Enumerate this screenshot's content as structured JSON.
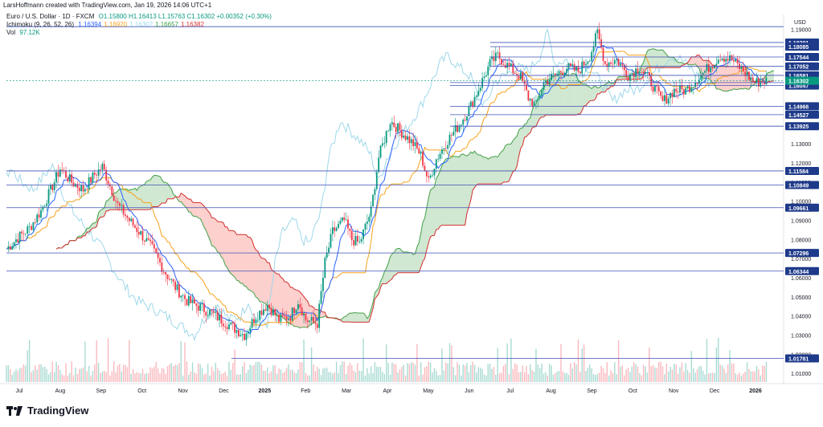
{
  "header": {
    "created_by": "LarsHoffmann created with TradingView.com, Jan 19, 2026 14:06 UTC+1"
  },
  "legend": {
    "symbol": "Euro / U.S. Dollar · 1D · FXCM",
    "ohlc": "O1.15800 H1.16413 L1.15763 C1.16302 +0.00352 (+0.30%)",
    "ichimoku_label": "Ichimoku (9, 26, 52, 26)",
    "ichimoku_values": [
      {
        "text": "1.16394",
        "color": "#2962ff"
      },
      {
        "text": "1.16920",
        "color": "#f7a21b"
      },
      {
        "text": "1.16302",
        "color": "#9fd8ea"
      },
      {
        "text": "1.16657",
        "color": "#43a047"
      },
      {
        "text": "1.16382",
        "color": "#d32f2f"
      }
    ],
    "vol_label": "Vol",
    "vol_value": "97.12K"
  },
  "footer": {
    "brand": "TradingView"
  },
  "chart_data": {
    "type": "candlestick",
    "currency": "USD",
    "y_range": [
      1.005,
      1.196
    ],
    "y_ticks": [
      "1.19000",
      "1.18000",
      "1.17000",
      "1.16000",
      "1.15000",
      "1.14000",
      "1.13000",
      "1.12000",
      "1.11000",
      "1.10000",
      "1.09000",
      "1.08000",
      "1.07000",
      "1.06000",
      "1.05000",
      "1.04000",
      "1.03000",
      "1.02000",
      "1.01000"
    ],
    "x_labels": [
      "Jul",
      "Aug",
      "Sep",
      "Oct",
      "Nov",
      "Dec",
      "2025",
      "Feb",
      "Mar",
      "Apr",
      "May",
      "Jun",
      "Jul",
      "Aug",
      "Sep",
      "Oct",
      "Nov",
      "Dec",
      "2026"
    ],
    "x_bold": [
      "2025",
      "2026"
    ],
    "levels": [
      {
        "value": 1.18301,
        "label": "1.18301"
      },
      {
        "value": 1.18085,
        "label": "1.18085"
      },
      {
        "value": 1.17544,
        "label": "1.17544"
      },
      {
        "value": 1.17052,
        "label": "1.17052"
      },
      {
        "value": 1.16581,
        "label": "1.16581"
      },
      {
        "value": 1.16206,
        "label": "1.16206"
      },
      {
        "value": 1.16047,
        "label": "1.16047"
      },
      {
        "value": 1.14966,
        "label": "1.14966"
      },
      {
        "value": 1.14527,
        "label": "1.14527"
      },
      {
        "value": 1.13925,
        "label": "1.13925"
      },
      {
        "value": 1.11584,
        "label": "1.11584"
      },
      {
        "value": 1.10849,
        "label": "1.10849"
      },
      {
        "value": 1.09661,
        "label": "1.09661"
      },
      {
        "value": 1.07296,
        "label": "1.07296"
      },
      {
        "value": 1.06344,
        "label": "1.06344"
      },
      {
        "value": 1.01781,
        "label": "1.01781"
      }
    ],
    "last_price": {
      "value": 1.16302,
      "label": "1.16302"
    },
    "top_line": 1.1913,
    "price_path": [
      [
        0,
        1.075
      ],
      [
        6,
        1.081
      ],
      [
        12,
        1.086
      ],
      [
        18,
        1.095
      ],
      [
        24,
        1.108
      ],
      [
        28,
        1.117
      ],
      [
        34,
        1.11
      ],
      [
        40,
        1.106
      ],
      [
        46,
        1.114
      ],
      [
        50,
        1.118
      ],
      [
        54,
        1.108
      ],
      [
        58,
        1.098
      ],
      [
        64,
        1.09
      ],
      [
        70,
        1.083
      ],
      [
        76,
        1.075
      ],
      [
        82,
        1.064
      ],
      [
        88,
        1.055
      ],
      [
        94,
        1.048
      ],
      [
        100,
        1.045
      ],
      [
        106,
        1.042
      ],
      [
        112,
        1.038
      ],
      [
        118,
        1.034
      ],
      [
        124,
        1.03
      ],
      [
        130,
        1.04
      ],
      [
        136,
        1.046
      ],
      [
        142,
        1.038
      ],
      [
        148,
        1.04
      ],
      [
        152,
        1.048
      ],
      [
        156,
        1.038
      ],
      [
        162,
        1.036
      ],
      [
        166,
        1.068
      ],
      [
        170,
        1.084
      ],
      [
        176,
        1.09
      ],
      [
        180,
        1.08
      ],
      [
        184,
        1.078
      ],
      [
        190,
        1.095
      ],
      [
        194,
        1.123
      ],
      [
        200,
        1.142
      ],
      [
        206,
        1.136
      ],
      [
        212,
        1.13
      ],
      [
        216,
        1.124
      ],
      [
        220,
        1.11
      ],
      [
        224,
        1.122
      ],
      [
        230,
        1.132
      ],
      [
        236,
        1.14
      ],
      [
        242,
        1.15
      ],
      [
        248,
        1.163
      ],
      [
        252,
        1.172
      ],
      [
        256,
        1.176
      ],
      [
        262,
        1.17
      ],
      [
        268,
        1.165
      ],
      [
        272,
        1.154
      ],
      [
        276,
        1.15
      ],
      [
        280,
        1.162
      ],
      [
        286,
        1.166
      ],
      [
        292,
        1.17
      ],
      [
        298,
        1.168
      ],
      [
        304,
        1.176
      ],
      [
        308,
        1.188
      ],
      [
        312,
        1.172
      ],
      [
        318,
        1.174
      ],
      [
        324,
        1.166
      ],
      [
        330,
        1.17
      ],
      [
        336,
        1.162
      ],
      [
        342,
        1.152
      ],
      [
        348,
        1.158
      ],
      [
        354,
        1.158
      ],
      [
        360,
        1.164
      ],
      [
        366,
        1.17
      ],
      [
        372,
        1.176
      ],
      [
        378,
        1.174
      ],
      [
        384,
        1.168
      ],
      [
        390,
        1.162
      ],
      [
        396,
        1.163
      ]
    ],
    "volume_bars": 400,
    "series": [
      {
        "name": "Conversion Line",
        "color": "#2962ff"
      },
      {
        "name": "Base Line",
        "color": "#f7a21b"
      },
      {
        "name": "Lagging Span",
        "color": "#9fd8ea"
      },
      {
        "name": "Leading Span A",
        "color": "#43a047"
      },
      {
        "name": "Leading Span B",
        "color": "#d32f2f"
      }
    ]
  }
}
